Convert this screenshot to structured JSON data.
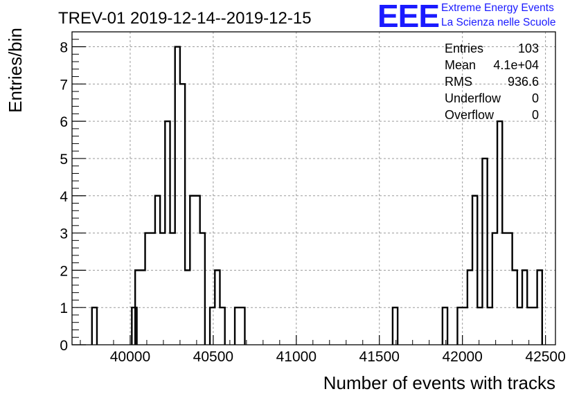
{
  "chart_data": {
    "type": "histogram",
    "title": "TREV-01 2019-12-14--2019-12-15",
    "xlabel": "Number of events with tracks",
    "ylabel": "Entries/bin",
    "xlim": [
      39650,
      42560
    ],
    "ylim": [
      0,
      8.4
    ],
    "bin_width": 30,
    "grid": true,
    "x_ticks": [
      40000,
      40500,
      41000,
      41500,
      42000,
      42500
    ],
    "y_ticks": [
      0,
      1,
      2,
      3,
      4,
      5,
      6,
      7,
      8
    ],
    "bins": [
      {
        "x": 39770,
        "count": 1
      },
      {
        "x": 40010,
        "count": 1
      },
      {
        "x": 40030,
        "count": 2
      },
      {
        "x": 40060,
        "count": 2
      },
      {
        "x": 40090,
        "count": 3
      },
      {
        "x": 40120,
        "count": 3
      },
      {
        "x": 40150,
        "count": 4
      },
      {
        "x": 40180,
        "count": 3
      },
      {
        "x": 40210,
        "count": 6
      },
      {
        "x": 40240,
        "count": 3
      },
      {
        "x": 40270,
        "count": 8
      },
      {
        "x": 40300,
        "count": 7
      },
      {
        "x": 40330,
        "count": 2
      },
      {
        "x": 40360,
        "count": 4
      },
      {
        "x": 40390,
        "count": 4
      },
      {
        "x": 40420,
        "count": 3
      },
      {
        "x": 40480,
        "count": 1
      },
      {
        "x": 40510,
        "count": 2
      },
      {
        "x": 40540,
        "count": 1
      },
      {
        "x": 40630,
        "count": 1
      },
      {
        "x": 40660,
        "count": 1
      },
      {
        "x": 41580,
        "count": 1
      },
      {
        "x": 41880,
        "count": 1
      },
      {
        "x": 41970,
        "count": 1
      },
      {
        "x": 42000,
        "count": 1
      },
      {
        "x": 42030,
        "count": 2
      },
      {
        "x": 42060,
        "count": 4
      },
      {
        "x": 42090,
        "count": 1
      },
      {
        "x": 42120,
        "count": 5
      },
      {
        "x": 42150,
        "count": 1
      },
      {
        "x": 42180,
        "count": 3
      },
      {
        "x": 42210,
        "count": 6
      },
      {
        "x": 42240,
        "count": 3
      },
      {
        "x": 42270,
        "count": 3
      },
      {
        "x": 42300,
        "count": 2
      },
      {
        "x": 42330,
        "count": 1
      },
      {
        "x": 42360,
        "count": 2
      },
      {
        "x": 42390,
        "count": 1
      },
      {
        "x": 42420,
        "count": 1
      },
      {
        "x": 42450,
        "count": 2
      }
    ],
    "stats": [
      {
        "label": "Entries",
        "value": "103"
      },
      {
        "label": "Mean",
        "value": "4.1e+04"
      },
      {
        "label": "RMS",
        "value": "936.6"
      },
      {
        "label": "Underflow",
        "value": "0"
      },
      {
        "label": "Overflow",
        "value": "0"
      }
    ],
    "colors": {
      "line": "#000000",
      "grid": "#9a9a9a",
      "logo": "#1a1aff"
    }
  },
  "logo": {
    "mark": "EEE",
    "line1": "Extreme Energy Events",
    "line2": "La Scienza nelle Scuole"
  }
}
